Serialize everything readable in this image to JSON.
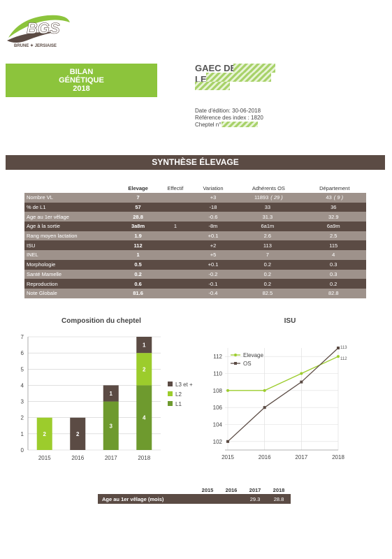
{
  "logo": {
    "brand": "BGS",
    "tagline": "BRUNE ✦ JERSIAISE"
  },
  "header": {
    "title_lines": [
      "BILAN",
      "GÉNÉTIQUE",
      "2018"
    ],
    "farm_line1": "GAEC DES",
    "farm_line2": "LE"
  },
  "meta": {
    "date": "Date d'édition: 30-06-2018",
    "ref": "Référence des index : 1820",
    "cheptel": "Cheptel n°"
  },
  "section_title": "SYNTHÈSE ÉLEVAGE",
  "table": {
    "columns": [
      "",
      "Elevage",
      "Effectif",
      "Variation",
      "Adhérents OS",
      "Département"
    ],
    "rows": [
      {
        "label": "Nombre VL",
        "elevage": "7",
        "effectif": "",
        "variation": "+3",
        "adherents": "11893",
        "adherents_n": "( 29 )",
        "dept": "43",
        "dept_n": "( 9 )"
      },
      {
        "label": "% de L1",
        "elevage": "57",
        "effectif": "",
        "variation": "-18",
        "adherents": "33",
        "adherents_n": "",
        "dept": "36",
        "dept_n": ""
      },
      {
        "label": "Age au 1er vêlage",
        "elevage": "28.8",
        "effectif": "",
        "variation": "-0.6",
        "adherents": "31.3",
        "adherents_n": "",
        "dept": "32.9",
        "dept_n": ""
      },
      {
        "label": "Age à la sortie",
        "elevage": "3a8m",
        "effectif": "1",
        "variation": "-8m",
        "adherents": "6a1m",
        "adherents_n": "",
        "dept": "6a9m",
        "dept_n": ""
      },
      {
        "label": "Rang moyen lactation",
        "elevage": "1.9",
        "effectif": "",
        "variation": "+0.1",
        "adherents": "2.6",
        "adherents_n": "",
        "dept": "2.5",
        "dept_n": ""
      },
      {
        "label": "ISU",
        "elevage": "112",
        "effectif": "",
        "variation": "+2",
        "adherents": "113",
        "adherents_n": "",
        "dept": "115",
        "dept_n": ""
      },
      {
        "label": "INEL",
        "elevage": "1",
        "effectif": "",
        "variation": "+5",
        "adherents": "7",
        "adherents_n": "",
        "dept": "4",
        "dept_n": ""
      },
      {
        "label": "Morphologie",
        "elevage": "0.5",
        "effectif": "",
        "variation": "+0.1",
        "adherents": "0.2",
        "adherents_n": "",
        "dept": "0.3",
        "dept_n": ""
      },
      {
        "label": "Santé Mamelle",
        "elevage": "0.2",
        "effectif": "",
        "variation": "-0.2",
        "adherents": "0.2",
        "adherents_n": "",
        "dept": "0.3",
        "dept_n": ""
      },
      {
        "label": "Reproduction",
        "elevage": "0.6",
        "effectif": "",
        "variation": "-0.1",
        "adherents": "0.2",
        "adherents_n": "",
        "dept": "0.2",
        "dept_n": ""
      },
      {
        "label": "Note Globale",
        "elevage": "81.6",
        "effectif": "",
        "variation": "-0.4",
        "adherents": "82.5",
        "adherents_n": "",
        "dept": "82.8",
        "dept_n": ""
      }
    ]
  },
  "chart_data": [
    {
      "type": "bar",
      "title": "Composition du cheptel",
      "categories": [
        "2015",
        "2016",
        "2017",
        "2018"
      ],
      "stacked": true,
      "ylim": [
        0,
        7
      ],
      "yticks": [
        "0",
        "1",
        "2",
        "3",
        "4",
        "5",
        "6",
        "7"
      ],
      "series": [
        {
          "name": "L1",
          "values": [
            0,
            0,
            3,
            4
          ],
          "color": "#6e9a2e"
        },
        {
          "name": "L2",
          "values": [
            2,
            0,
            0,
            2
          ],
          "color": "#9ccc2c"
        },
        {
          "name": "L3 et +",
          "values": [
            0,
            2,
            1,
            1
          ],
          "color": "#5b4b44"
        }
      ],
      "legend": "right"
    },
    {
      "type": "line",
      "title": "ISU",
      "x": [
        "2015",
        "2016",
        "2017",
        "2018"
      ],
      "ylim": [
        101,
        113
      ],
      "yticks": [
        "102",
        "104",
        "106",
        "108",
        "110",
        "112"
      ],
      "series": [
        {
          "name": "Elevage",
          "values": [
            108,
            108,
            110,
            112
          ],
          "color": "#9ccc2c",
          "end_label": "112"
        },
        {
          "name": "OS",
          "values": [
            102,
            106,
            109,
            113
          ],
          "color": "#5b4b44",
          "end_label": "113"
        }
      ],
      "legend": "top-left"
    }
  ],
  "bottom_table": {
    "years": [
      "2015",
      "2016",
      "2017",
      "2018"
    ],
    "label": "Age au 1er vêlage (mois)",
    "values": [
      "",
      "",
      "29.3",
      "28.8"
    ]
  }
}
